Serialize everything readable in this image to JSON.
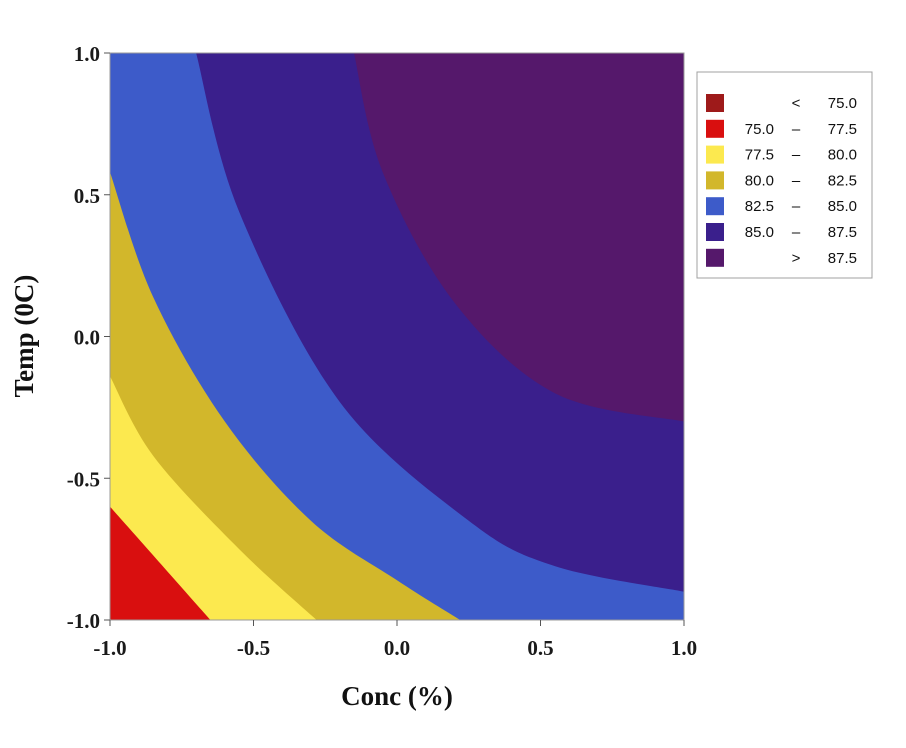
{
  "chart_data": {
    "type": "contour",
    "xlabel": "Conc (%)",
    "ylabel": "Temp (0C)",
    "xlim": [
      -1.0,
      1.0
    ],
    "ylim": [
      -1.0,
      1.0
    ],
    "x_ticks": [
      -1.0,
      -0.5,
      0.0,
      0.5,
      1.0
    ],
    "y_ticks": [
      -1.0,
      -0.5,
      0.0,
      0.5,
      1.0
    ],
    "x_tick_labels": [
      "-1.0",
      "-0.5",
      "0.0",
      "0.5",
      "1.0"
    ],
    "y_tick_labels": [
      "-1.0",
      "-0.5",
      "0.0",
      "0.5",
      "1.0"
    ],
    "grid": false,
    "legend_position": "right-top",
    "levels": [
      {
        "lo": "",
        "sep": "<",
        "hi": "75.0",
        "color": "#9e1a1a"
      },
      {
        "lo": "75.0",
        "sep": "–",
        "hi": "77.5",
        "color": "#d90f0f"
      },
      {
        "lo": "77.5",
        "sep": "–",
        "hi": "80.0",
        "color": "#fce94f"
      },
      {
        "lo": "80.0",
        "sep": "–",
        "hi": "82.5",
        "color": "#d2b72b"
      },
      {
        "lo": "82.5",
        "sep": "–",
        "hi": "85.0",
        "color": "#3d5bc9"
      },
      {
        "lo": "85.0",
        "sep": "–",
        "hi": "87.5",
        "color": "#3a1f8c"
      },
      {
        "lo": "",
        "sep": ">",
        "hi": "87.5",
        "color": "#55186b"
      }
    ],
    "region_boundaries": [
      {
        "level": 75.0,
        "points": []
      },
      {
        "level": 77.5,
        "points": [
          [
            -1.0,
            -0.6
          ],
          [
            -0.65,
            -1.0
          ]
        ]
      },
      {
        "level": 80.0,
        "points": [
          [
            -1.0,
            -0.14
          ],
          [
            -0.85,
            -0.42
          ],
          [
            -0.55,
            -0.75
          ],
          [
            -0.28,
            -1.0
          ]
        ]
      },
      {
        "level": 82.5,
        "points": [
          [
            -1.0,
            0.58
          ],
          [
            -0.85,
            0.14
          ],
          [
            -0.6,
            -0.3
          ],
          [
            -0.3,
            -0.65
          ],
          [
            0.0,
            -0.86
          ],
          [
            0.22,
            -1.0
          ]
        ]
      },
      {
        "level": 85.0,
        "points": [
          [
            -0.7,
            1.0
          ],
          [
            -0.55,
            0.44
          ],
          [
            -0.2,
            -0.23
          ],
          [
            0.25,
            -0.65
          ],
          [
            0.55,
            -0.81
          ],
          [
            1.0,
            -0.9
          ]
        ]
      },
      {
        "level": 87.5,
        "points": [
          [
            -0.15,
            1.0
          ],
          [
            -0.05,
            0.58
          ],
          [
            0.2,
            0.12
          ],
          [
            0.55,
            -0.2
          ],
          [
            1.0,
            -0.3
          ]
        ]
      }
    ]
  }
}
